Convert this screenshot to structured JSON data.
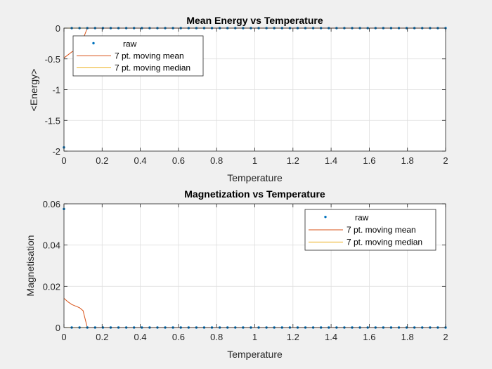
{
  "chart_data": [
    {
      "type": "line",
      "title": "Mean Energy vs Temperature",
      "xlabel": "Temperature",
      "ylabel": "<Energy>",
      "xlim": [
        0,
        2
      ],
      "ylim": [
        -2,
        0
      ],
      "xticks": [
        0,
        0.2,
        0.4,
        0.6,
        0.8,
        1,
        1.2,
        1.4,
        1.6,
        1.8,
        2
      ],
      "xtick_labels": [
        "0",
        "0.2",
        "0.4",
        "0.6",
        "0.8",
        "1",
        "1.2",
        "1.4",
        "1.6",
        "1.8",
        "2"
      ],
      "yticks": [
        -2,
        -1.5,
        -1,
        -0.5,
        0
      ],
      "ytick_labels": [
        "-2",
        "-1.5",
        "-1",
        "-0.5",
        "0"
      ],
      "grid": true,
      "legend_placement": "top-left",
      "series": [
        {
          "name": "raw",
          "style": "markers",
          "color": "#0072BD",
          "x": [
            0,
            0.0408,
            0.0816,
            0.1224,
            0.1633,
            0.2041,
            0.2449,
            0.2857,
            0.3265,
            0.3673,
            0.4082,
            0.449,
            0.4898,
            0.5306,
            0.5714,
            0.6122,
            0.6531,
            0.6939,
            0.7347,
            0.7755,
            0.8163,
            0.8571,
            0.898,
            0.9388,
            0.9796,
            1.0204,
            1.0612,
            1.102,
            1.1429,
            1.1837,
            1.2245,
            1.2653,
            1.3061,
            1.3469,
            1.3878,
            1.4286,
            1.4694,
            1.5102,
            1.551,
            1.5918,
            1.6327,
            1.6735,
            1.7143,
            1.7551,
            1.7959,
            1.8367,
            1.8776,
            1.9184,
            1.9592,
            2
          ],
          "y": [
            -1.94,
            0,
            0,
            0,
            0,
            0,
            0,
            0,
            0,
            0,
            0,
            0,
            0,
            0,
            0,
            0,
            0,
            0,
            0,
            0,
            0,
            0,
            0,
            0,
            0,
            0,
            0,
            0,
            0,
            0,
            0,
            0,
            0,
            0,
            0,
            0,
            0,
            0,
            0,
            0,
            0,
            0,
            0,
            0,
            0,
            0,
            0,
            0,
            0,
            0
          ]
        },
        {
          "name": "7 pt. moving mean",
          "style": "line",
          "color": "#D95319",
          "x": [
            0,
            0.0408,
            0.0816,
            0.1224,
            0.1633,
            2
          ],
          "y": [
            -0.485,
            -0.388,
            -0.323,
            0,
            0,
            0
          ]
        },
        {
          "name": "7 pt. moving median",
          "style": "line",
          "color": "#EDB120",
          "x": [
            0,
            2
          ],
          "y": [
            0,
            0
          ]
        }
      ]
    },
    {
      "type": "line",
      "title": "Magnetization vs Temperature",
      "xlabel": "Temperature",
      "ylabel": "Magnetisation",
      "xlim": [
        0,
        2
      ],
      "ylim": [
        0,
        0.06
      ],
      "xticks": [
        0,
        0.2,
        0.4,
        0.6,
        0.8,
        1,
        1.2,
        1.4,
        1.6,
        1.8,
        2
      ],
      "xtick_labels": [
        "0",
        "0.2",
        "0.4",
        "0.6",
        "0.8",
        "1",
        "1.2",
        "1.4",
        "1.6",
        "1.8",
        "2"
      ],
      "yticks": [
        0,
        0.02,
        0.04,
        0.06
      ],
      "ytick_labels": [
        "0",
        "0.02",
        "0.04",
        "0.06"
      ],
      "grid": true,
      "legend_placement": "top-right",
      "series": [
        {
          "name": "raw",
          "style": "markers",
          "color": "#0072BD",
          "x": [
            0,
            0.0408,
            0.0816,
            0.1224,
            0.1633,
            0.2041,
            0.2449,
            0.2857,
            0.3265,
            0.3673,
            0.4082,
            0.449,
            0.4898,
            0.5306,
            0.5714,
            0.6122,
            0.6531,
            0.6939,
            0.7347,
            0.7755,
            0.8163,
            0.8571,
            0.898,
            0.9388,
            0.9796,
            1.0204,
            1.0612,
            1.102,
            1.1429,
            1.1837,
            1.2245,
            1.2653,
            1.3061,
            1.3469,
            1.3878,
            1.4286,
            1.4694,
            1.5102,
            1.551,
            1.5918,
            1.6327,
            1.6735,
            1.7143,
            1.7551,
            1.7959,
            1.8367,
            1.8776,
            1.9184,
            1.9592,
            2
          ],
          "y": [
            0.0575,
            0,
            0,
            0,
            0,
            0,
            0,
            0,
            0,
            0,
            0,
            0,
            0,
            0,
            0,
            0,
            0,
            0,
            0,
            0,
            0,
            0,
            0,
            0,
            0,
            0,
            0,
            0,
            0,
            0,
            0,
            0,
            0,
            0,
            0,
            0,
            0,
            0,
            0,
            0,
            0,
            0,
            0,
            0,
            0,
            0,
            0,
            0,
            0,
            0
          ]
        },
        {
          "name": "7 pt. moving mean",
          "style": "line",
          "color": "#D95319",
          "x": [
            0,
            0.0204,
            0.0408,
            0.0816,
            0.1,
            0.1224,
            0.1633,
            2
          ],
          "y": [
            0.0142,
            0.0125,
            0.0112,
            0.0096,
            0.0082,
            0,
            0,
            0
          ]
        },
        {
          "name": "7 pt. moving median",
          "style": "line",
          "color": "#EDB120",
          "x": [
            0,
            2
          ],
          "y": [
            0,
            0
          ]
        }
      ]
    }
  ]
}
